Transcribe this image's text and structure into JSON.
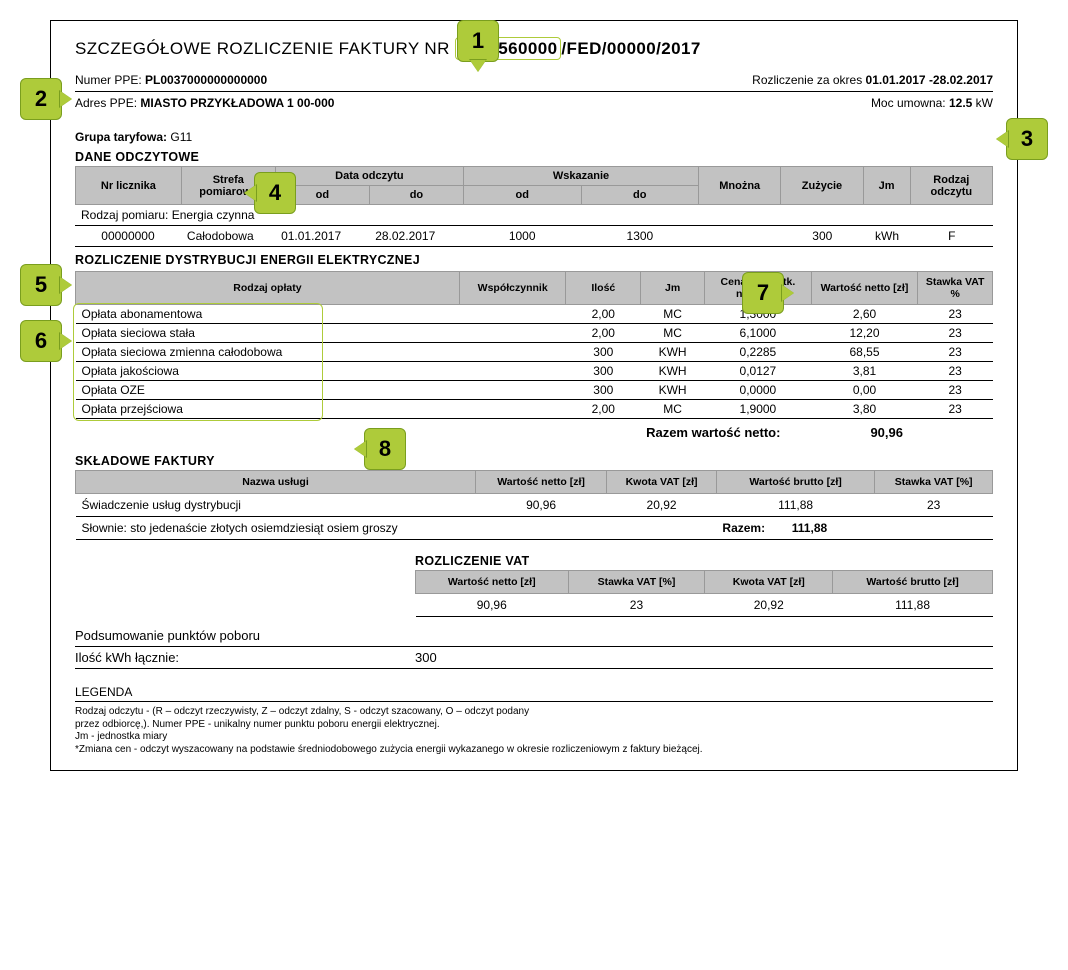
{
  "callouts": {
    "1": "1",
    "2": "2",
    "3": "3",
    "4": "4",
    "5": "5",
    "6": "6",
    "7": "7",
    "8": "8"
  },
  "header": {
    "title_prefix": "SZCZEGÓŁOWE ROZLICZENIE FAKTURY NR ",
    "invoice_number_hl": "1234560000",
    "invoice_number_suffix": "/FED/00000/2017",
    "ppe_label": "Numer PPE: ",
    "ppe_value": "PL0037000000000000",
    "period_label": "Rozliczenie za okres ",
    "period_value": "01.01.2017 -28.02.2017",
    "adresppe_label": "Adres PPE: ",
    "adresppe_value": "MIASTO PRZYKŁADOWA 1 00-000",
    "moc_label": "Moc umowna: ",
    "moc_value": "12.5",
    "moc_unit": " kW",
    "grupa_label": "Grupa taryfowa: ",
    "grupa_value": "G11"
  },
  "dane_odczytowe": {
    "title": "DANE ODCZYTOWE",
    "headers": {
      "nr": "Nr licznika",
      "strefa": "Strefa pomiarowa",
      "data": "Data odczytu",
      "od": "od",
      "do": "do",
      "wskazanie": "Wskazanie",
      "mnozna": "Mnożna",
      "zuzycie": "Zużycie",
      "jm": "Jm",
      "rodzaj": "Rodzaj odczytu"
    },
    "rodzaj_pomiaru_label": "Rodzaj pomiaru: ",
    "rodzaj_pomiaru_value": "Energia czynna",
    "row": {
      "nr": "00000000",
      "strefa": "Całodobowa",
      "data_od": "01.01.2017",
      "data_do": "28.02.2017",
      "wsk_od": "1000",
      "wsk_do": "1300",
      "mnozna": "",
      "zuzycie": "300",
      "jm": "kWh",
      "rodzaj": "F"
    }
  },
  "rozliczenie": {
    "title": "ROZLICZENIE DYSTRYBUCJI ENERGII ELEKTRYCZNEJ",
    "headers": {
      "rodzaj": "Rodzaj opłaty",
      "wspolczynnik": "Współczynnik",
      "ilosc": "Ilość",
      "jm": "Jm",
      "cena": "Cena jednostk. netto  [zł]",
      "wartosc": "Wartość netto [zł]",
      "stawka": "Stawka VAT %"
    },
    "rows": [
      {
        "nazwa": "Opłata abonamentowa",
        "wsp": "",
        "ilosc": "2,00",
        "jm": "MC",
        "cena": "1,3000",
        "wart": "2,60",
        "vat": "23"
      },
      {
        "nazwa": "Opłata sieciowa stała",
        "wsp": "",
        "ilosc": "2,00",
        "jm": "MC",
        "cena": "6,1000",
        "wart": "12,20",
        "vat": "23"
      },
      {
        "nazwa": "Opłata sieciowa zmienna całodobowa",
        "wsp": "",
        "ilosc": "300",
        "jm": "KWH",
        "cena": "0,2285",
        "wart": "68,55",
        "vat": "23"
      },
      {
        "nazwa": "Opłata  jakościowa",
        "wsp": "",
        "ilosc": "300",
        "jm": "KWH",
        "cena": "0,0127",
        "wart": "3,81",
        "vat": "23"
      },
      {
        "nazwa": "Opłata  OZE",
        "wsp": "",
        "ilosc": "300",
        "jm": "KWH",
        "cena": "0,0000",
        "wart": "0,00",
        "vat": "23"
      },
      {
        "nazwa": "Opłata przejściowa",
        "wsp": "",
        "ilosc": "2,00",
        "jm": "MC",
        "cena": "1,9000",
        "wart": "3,80",
        "vat": "23"
      }
    ],
    "sum_label": "Razem wartość netto:",
    "sum_value": "90,96"
  },
  "skladowe": {
    "title": "SKŁADOWE FAKTURY",
    "headers": {
      "nazwa": "Nazwa usługi",
      "netto": "Wartość netto [zł]",
      "kwota": "Kwota VAT [zł]",
      "brutto": "Wartość brutto [zł]",
      "stawka": "Stawka VAT [%]"
    },
    "row": {
      "nazwa": "Świadczenie usług dystrybucji",
      "netto": "90,96",
      "kwota": "20,92",
      "brutto": "111,88",
      "stawka": "23"
    },
    "slownie_label": "Słownie: ",
    "slownie_value": "sto jedenaście złotych osiemdziesiąt osiem groszy",
    "razem_label": "Razem:",
    "razem_value": "111,88"
  },
  "vat": {
    "title": "ROZLICZENIE VAT",
    "headers": {
      "netto": "Wartość netto [zł]",
      "stawka": "Stawka VAT [%]",
      "kwota": "Kwota VAT [zł]",
      "brutto": "Wartość brutto [zł]"
    },
    "row": {
      "netto": "90,96",
      "stawka": "23",
      "kwota": "20,92",
      "brutto": "111,88"
    }
  },
  "podsumowanie": {
    "title": "Podsumowanie punktów poboru",
    "label": "Ilość kWh łącznie:",
    "value": "300"
  },
  "legenda": {
    "title": "LEGENDA",
    "line1": "Rodzaj odczytu - (R – odczyt rzeczywisty, Z – odczyt zdalny, S - odczyt szacowany, O – odczyt podany",
    "line2": "przez odbiorcę,). Numer PPE - unikalny numer punktu poboru energii elektrycznej.",
    "line3": "Jm - jednostka miary",
    "line4": "*Zmiana cen - odczyt wyszacowany na podstawie średniodobowego zużycia energii wykazanego w okresie rozliczeniowym z faktury bieżącej."
  },
  "colors": {
    "callout_bg": "#aecb3a",
    "callout_border": "#7a9e1e",
    "th_bg": "#c2c2c2"
  }
}
